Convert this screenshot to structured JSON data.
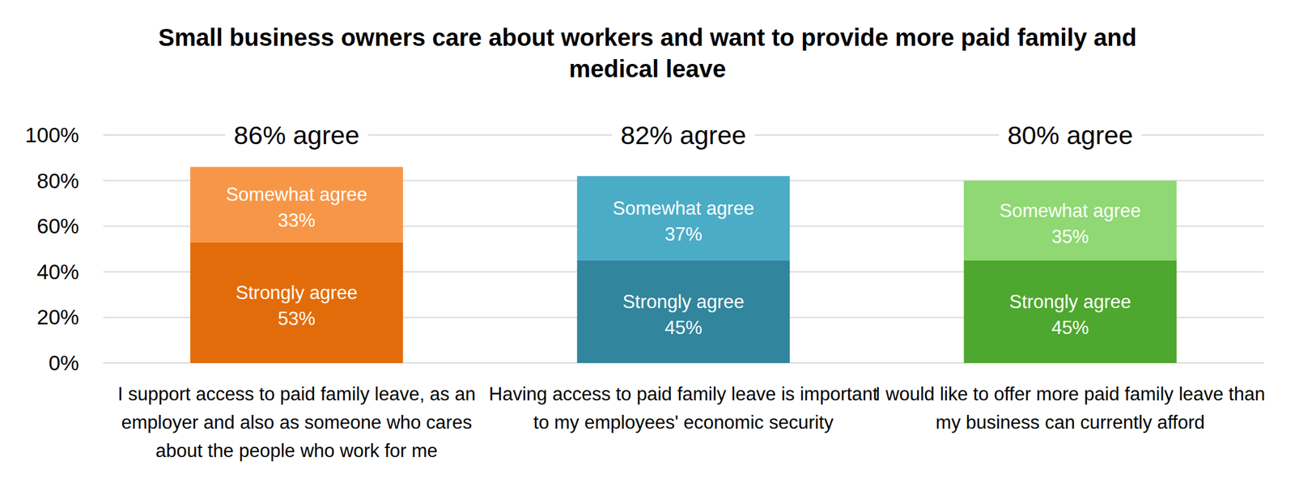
{
  "chart_data": {
    "type": "bar",
    "stacked": true,
    "grid": true,
    "data_labels": true,
    "title": "Small business owners care about workers and want to provide more paid family and medical leave",
    "categories": [
      "I support access to paid family leave, as an employer and also as someone who cares about the people who work for me",
      "Having access to paid family leave is important to my employees' economic security",
      "I would like to offer more paid family leave than my business can currently afford"
    ],
    "series": [
      {
        "name": "Strongly agree",
        "values": [
          53,
          45,
          45
        ],
        "value_labels": [
          "53%",
          "45%",
          "45%"
        ],
        "colors": [
          "#e36c0a",
          "#31859c",
          "#4ea72e"
        ]
      },
      {
        "name": "Somewhat agree",
        "values": [
          33,
          37,
          35
        ],
        "value_labels": [
          "33%",
          "37%",
          "35%"
        ],
        "colors": [
          "#f79646",
          "#4bacc6",
          "#8fd873"
        ]
      }
    ],
    "total_labels": [
      "86% agree",
      "82% agree",
      "80% agree"
    ],
    "ylim": [
      0,
      100
    ],
    "yticks": [
      {
        "value": 0,
        "label": "0%"
      },
      {
        "value": 20,
        "label": "20%"
      },
      {
        "value": 40,
        "label": "40%"
      },
      {
        "value": 60,
        "label": "60%"
      },
      {
        "value": 80,
        "label": "80%"
      },
      {
        "value": 100,
        "label": "100%"
      }
    ]
  }
}
